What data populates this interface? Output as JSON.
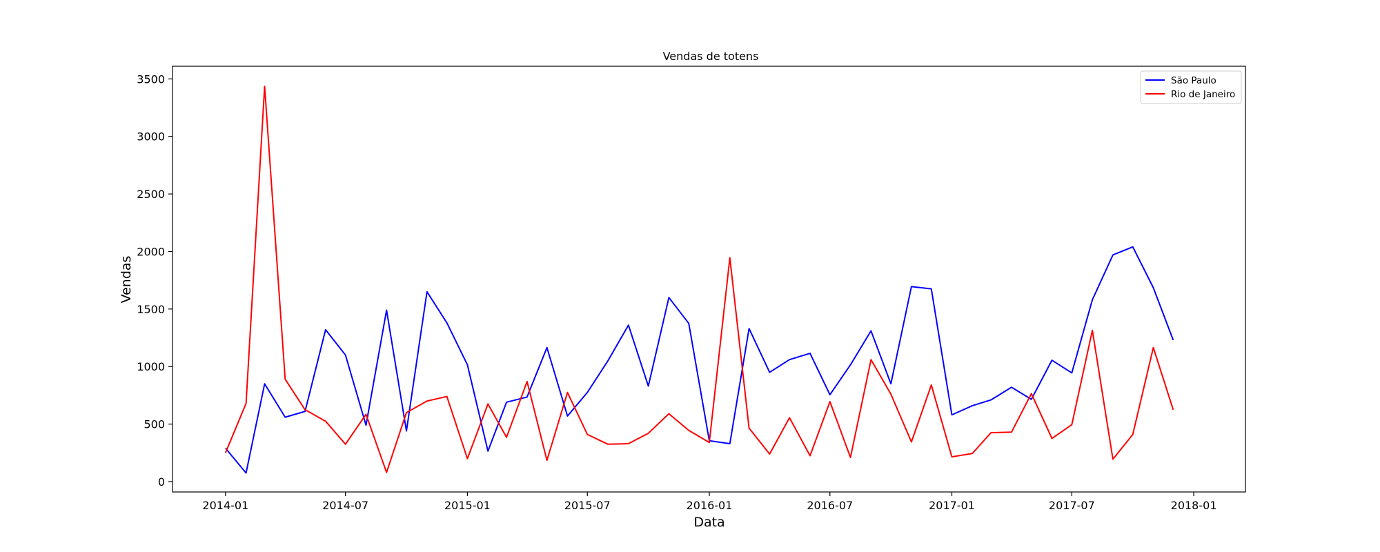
{
  "chart_data": {
    "type": "line",
    "title": "Vendas de totens",
    "xlabel": "Data",
    "ylabel": "Vendas",
    "x_ticks": [
      "2014-01",
      "2014-07",
      "2015-01",
      "2015-07",
      "2016-01",
      "2016-07",
      "2017-01",
      "2017-07",
      "2018-01"
    ],
    "y_ticks": [
      0,
      500,
      1000,
      1500,
      2000,
      2500,
      3000,
      3500
    ],
    "xlim": [
      "2013-10-13",
      "2018-03-20"
    ],
    "ylim": [
      -90,
      3610
    ],
    "grid": false,
    "legend_position": "top-right",
    "x": [
      "2014-01",
      "2014-02",
      "2014-03",
      "2014-04",
      "2014-05",
      "2014-06",
      "2014-07",
      "2014-08",
      "2014-09",
      "2014-10",
      "2014-11",
      "2014-12",
      "2015-01",
      "2015-02",
      "2015-03",
      "2015-04",
      "2015-05",
      "2015-06",
      "2015-07",
      "2015-08",
      "2015-09",
      "2015-10",
      "2015-11",
      "2015-12",
      "2016-01",
      "2016-02",
      "2016-03",
      "2016-04",
      "2016-05",
      "2016-06",
      "2016-07",
      "2016-08",
      "2016-09",
      "2016-10",
      "2016-11",
      "2016-12",
      "2017-01",
      "2017-02",
      "2017-03",
      "2017-04",
      "2017-05",
      "2017-06",
      "2017-07",
      "2017-08",
      "2017-09",
      "2017-10",
      "2017-11",
      "2017-12"
    ],
    "series": [
      {
        "name": "São Paulo",
        "color": "#0000ff",
        "values": [
          290,
          75,
          850,
          560,
          610,
          1320,
          1100,
          490,
          1490,
          440,
          1650,
          1380,
          1015,
          265,
          690,
          735,
          1165,
          570,
          775,
          1050,
          1360,
          830,
          1600,
          1375,
          355,
          330,
          1330,
          950,
          1060,
          1115,
          755,
          1015,
          1310,
          850,
          1695,
          1675,
          580,
          660,
          710,
          820,
          715,
          1055,
          945,
          1580,
          1970,
          2040,
          1685,
          1230
        ]
      },
      {
        "name": "Rio de Janeiro",
        "color": "#ff0000",
        "values": [
          250,
          680,
          3435,
          890,
          625,
          525,
          325,
          585,
          80,
          600,
          700,
          740,
          200,
          675,
          385,
          870,
          185,
          775,
          410,
          325,
          330,
          420,
          590,
          445,
          340,
          1945,
          465,
          240,
          555,
          225,
          695,
          210,
          1060,
          760,
          345,
          840,
          215,
          245,
          425,
          430,
          765,
          375,
          495,
          1315,
          195,
          410,
          1165,
          625
        ]
      }
    ]
  }
}
